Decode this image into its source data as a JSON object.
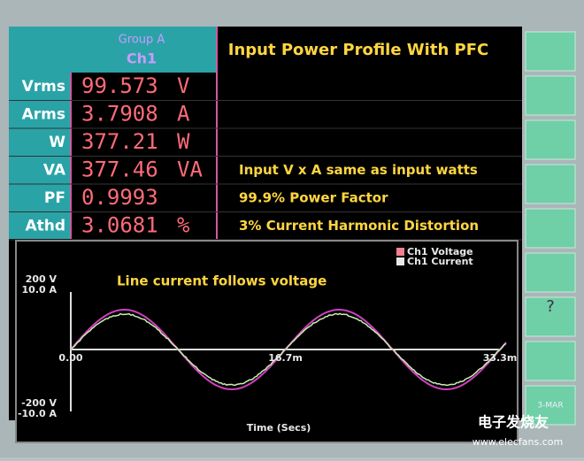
{
  "header": {
    "group": "Group A",
    "channel": "Ch1",
    "title": "Input Power Profile With PFC"
  },
  "readings": [
    {
      "label": "Vrms",
      "value": "99.573",
      "unit": "V"
    },
    {
      "label": "Arms",
      "value": "3.7908",
      "unit": "A"
    },
    {
      "label": "W",
      "value": "377.21",
      "unit": "W"
    },
    {
      "label": "VA",
      "value": "377.46",
      "unit": "VA",
      "note": "Input V x A same as input watts"
    },
    {
      "label": "PF",
      "value": "0.9993",
      "note": "99.9% Power Factor"
    },
    {
      "label": "Athd",
      "value": "3.0681",
      "unit": "%",
      "note": "3% Current Harmonic Distortion"
    }
  ],
  "waveform": {
    "legend": [
      "Ch1 Voltage",
      "Ch1 Current"
    ],
    "annotation": "Line current follows voltage",
    "y_top": [
      "200 V",
      "10.0 A"
    ],
    "y_bottom": [
      "-200 V",
      "-10.0 A"
    ],
    "x_labels": [
      "0.00",
      "16.7m",
      "33.3m"
    ],
    "x_title": "Time (Secs)"
  },
  "softkeys": [
    "?",
    "3-MAR"
  ],
  "watermark": [
    "电子发烧友",
    "www.elecfans.com"
  ]
}
